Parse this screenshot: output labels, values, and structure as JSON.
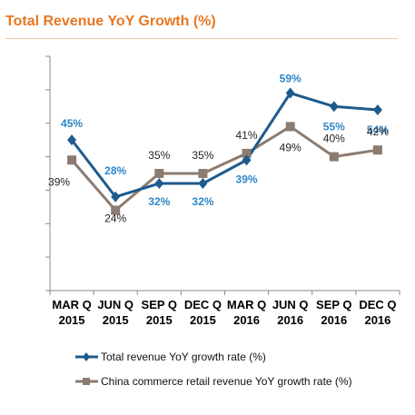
{
  "title": "Total Revenue YoY Growth  (%)",
  "colors": {
    "title": "#E87722",
    "rule": "#F3C9A2",
    "revenue": "#1F5A8C",
    "revenue_label": "#2E86C8",
    "china": "#8C7B70",
    "axis": "#888888"
  },
  "chart_data": {
    "type": "line",
    "categories": [
      [
        "MAR Q",
        "2015"
      ],
      [
        "JUN Q",
        "2015"
      ],
      [
        "SEP Q",
        "2015"
      ],
      [
        "DEC Q",
        "2015"
      ],
      [
        "MAR Q",
        "2016"
      ],
      [
        "JUN Q",
        "2016"
      ],
      [
        "SEP Q",
        "2016"
      ],
      [
        "DEC Q",
        "2016"
      ]
    ],
    "ylim": [
      0,
      70
    ],
    "grid": false,
    "legend_position": "bottom",
    "series": [
      {
        "name": "Total revenue YoY growth rate (%)",
        "marker": "diamond",
        "values": [
          45,
          28,
          32,
          32,
          39,
          59,
          55,
          54
        ],
        "labels": [
          "45%",
          "28%",
          "32%",
          "32%",
          "39%",
          "59%",
          "55%",
          "54%"
        ]
      },
      {
        "name": "China commerce retail revenue YoY growth rate (%)",
        "marker": "square",
        "values": [
          39,
          24,
          35,
          35,
          41,
          49,
          40,
          42
        ],
        "labels": [
          "39%",
          "24%",
          "35%",
          "35%",
          "41%",
          "49%",
          "40%",
          "42%"
        ]
      }
    ]
  }
}
